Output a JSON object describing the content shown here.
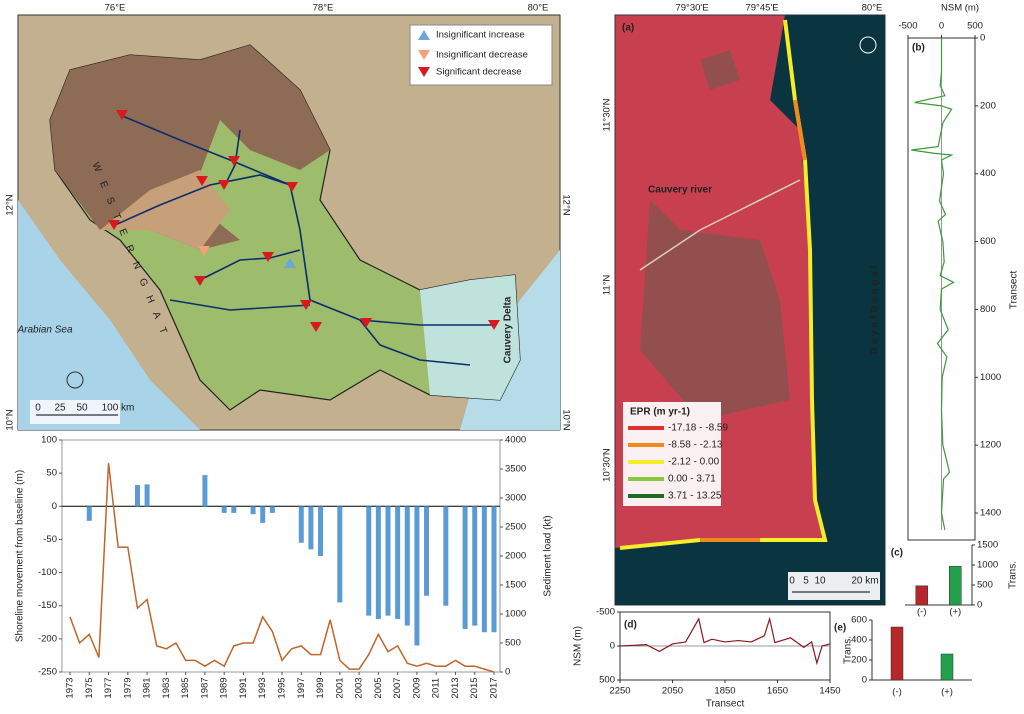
{
  "maps": [
    {
      "lon_labels": [
        "76°E",
        "78°E",
        "80°E"
      ],
      "lat_labels": [
        "12°N",
        "10°N"
      ],
      "legend": [
        "Insignificant increase",
        "Insignificant decrease",
        "Significant decrease"
      ],
      "sea": "Arabian Sea",
      "delta": "Cauvery Delta",
      "range": "W E S T E R N   G H A T",
      "scale": [
        "0",
        "25",
        "50",
        "100 km"
      ]
    },
    {
      "panel": "(a)",
      "lon_labels": [
        "79°30'E",
        "79°45'E",
        "80°E"
      ],
      "lat_labels": [
        "11°30'N",
        "11°N",
        "10°30'N"
      ],
      "river": "Cauvery river",
      "sea": "B a y   o f   B e n g a l",
      "legend_title": "EPR (m yr-1)",
      "legend": [
        {
          "label": "-17.18 - -8.59",
          "color": "#e0302a"
        },
        {
          "label": "-8.58 - -2.13",
          "color": "#f08a1c"
        },
        {
          "label": "-2.12 - 0.00",
          "color": "#f5ec2a"
        },
        {
          "label": "0.00 - 3.71",
          "color": "#8cc63f"
        },
        {
          "label": "3.71 - 13.25",
          "color": "#1e6b2a"
        }
      ],
      "scale": [
        "0",
        "5",
        "10",
        "20 km"
      ]
    }
  ],
  "chart_data": [
    {
      "type": "bar",
      "x": [
        1973,
        1974,
        1975,
        1976,
        1977,
        1978,
        1979,
        1980,
        1981,
        1982,
        1983,
        1984,
        1985,
        1986,
        1987,
        1988,
        1989,
        1990,
        1991,
        1992,
        1993,
        1994,
        1995,
        1996,
        1997,
        1998,
        1999,
        2000,
        2001,
        2002,
        2003,
        2004,
        2005,
        2006,
        2007,
        2008,
        2009,
        2010,
        2011,
        2012,
        2013,
        2014,
        2015,
        2016,
        2017
      ],
      "xlim": [
        1973,
        2017
      ],
      "xticks": [
        1973,
        1975,
        1977,
        1979,
        1981,
        1983,
        1985,
        1987,
        1989,
        1991,
        1993,
        1995,
        1997,
        1999,
        2001,
        2003,
        2005,
        2007,
        2009,
        2011,
        2013,
        2015,
        2017
      ],
      "ylabel": "Shoreline movement from baseline (m)",
      "y2label": "Sediment load (kt)",
      "ylim": [
        -250,
        100
      ],
      "yticks": [
        100,
        50,
        0,
        -50,
        -100,
        -150,
        -200,
        -250
      ],
      "y2lim": [
        0,
        4000
      ],
      "y2ticks": [
        0,
        500,
        1000,
        1500,
        2000,
        2500,
        3000,
        3500,
        4000
      ],
      "series": [
        {
          "type": "bar",
          "color": "#5b9bd5",
          "values": [
            null,
            null,
            -22,
            null,
            null,
            null,
            null,
            32,
            33,
            null,
            null,
            null,
            null,
            null,
            47,
            null,
            -10,
            -10,
            null,
            -12,
            -25,
            -10,
            null,
            null,
            -55,
            -65,
            -75,
            null,
            -145,
            null,
            null,
            -165,
            -170,
            -165,
            -170,
            -180,
            -210,
            -135,
            null,
            -150,
            null,
            -185,
            -180,
            -190,
            -190
          ]
        },
        {
          "type": "line",
          "axis": "y2",
          "color": "#c0652b",
          "values": [
            950,
            500,
            650,
            250,
            3600,
            2150,
            2150,
            1100,
            1250,
            450,
            400,
            500,
            200,
            200,
            100,
            200,
            100,
            450,
            500,
            500,
            950,
            700,
            200,
            400,
            450,
            300,
            300,
            900,
            200,
            50,
            50,
            300,
            650,
            350,
            450,
            150,
            100,
            150,
            100,
            100,
            200,
            100,
            100,
            50,
            0
          ]
        }
      ]
    },
    {
      "type": "line",
      "label": "(b)",
      "xlabel": "NSM (m)",
      "ylabel": "Transect",
      "xlim": [
        -500,
        500
      ],
      "xticks": [
        -500,
        0,
        500
      ],
      "ylim": [
        0,
        1450
      ],
      "yticks": [
        0,
        200,
        400,
        600,
        800,
        1000,
        1200,
        1400
      ],
      "y": [
        0,
        100,
        140,
        170,
        190,
        200,
        210,
        250,
        320,
        330,
        340,
        345,
        360,
        400,
        480,
        520,
        540,
        600,
        660,
        700,
        720,
        740,
        800,
        860,
        900,
        940,
        1000,
        1100,
        1200,
        1280,
        1300,
        1400,
        1450
      ],
      "values": [
        0,
        0,
        -20,
        50,
        -400,
        0,
        150,
        20,
        -50,
        -450,
        -100,
        150,
        0,
        30,
        -30,
        60,
        -50,
        20,
        40,
        -20,
        180,
        0,
        -20,
        100,
        -60,
        80,
        10,
        0,
        20,
        120,
        30,
        0,
        50
      ],
      "color": "#3a9a3a"
    },
    {
      "type": "bar",
      "label": "(c)",
      "ylabel": "Trans.",
      "categories": [
        "(-)",
        "(+)"
      ],
      "values": [
        480,
        970
      ],
      "colors": [
        "#b5272b",
        "#22a04b"
      ],
      "ylim": [
        0,
        1500
      ],
      "yticks": [
        0,
        500,
        1000,
        1500
      ]
    },
    {
      "type": "line",
      "label": "(d)",
      "xlabel": "Transect",
      "ylabel": "NSM (m)",
      "xlim": [
        2250,
        1450
      ],
      "xticks": [
        2250,
        2050,
        1850,
        1650,
        1450
      ],
      "ylim": [
        500,
        -500
      ],
      "yticks": [
        -500,
        0,
        500
      ],
      "x": [
        2250,
        2150,
        2100,
        2050,
        2000,
        1950,
        1930,
        1900,
        1850,
        1800,
        1750,
        1700,
        1680,
        1660,
        1600,
        1550,
        1520,
        1500,
        1480,
        1450
      ],
      "values": [
        0,
        -20,
        80,
        -30,
        -60,
        -400,
        -50,
        -100,
        -60,
        -80,
        -60,
        -150,
        -400,
        -50,
        -120,
        20,
        -60,
        250,
        0,
        -30
      ],
      "color": "#8b1a1a"
    },
    {
      "type": "bar",
      "label": "(e)",
      "ylabel": "Trans.",
      "categories": [
        "(-)",
        "(+)"
      ],
      "values": [
        530,
        260
      ],
      "colors": [
        "#b5272b",
        "#22a04b"
      ],
      "ylim": [
        0,
        600
      ],
      "yticks": [
        0,
        200,
        400,
        600
      ]
    }
  ]
}
